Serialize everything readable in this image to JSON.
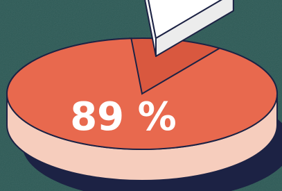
{
  "chart_data": {
    "type": "pie",
    "values": [
      89
    ],
    "value_labels": [
      "89 %"
    ],
    "color": "#e8694e"
  }
}
